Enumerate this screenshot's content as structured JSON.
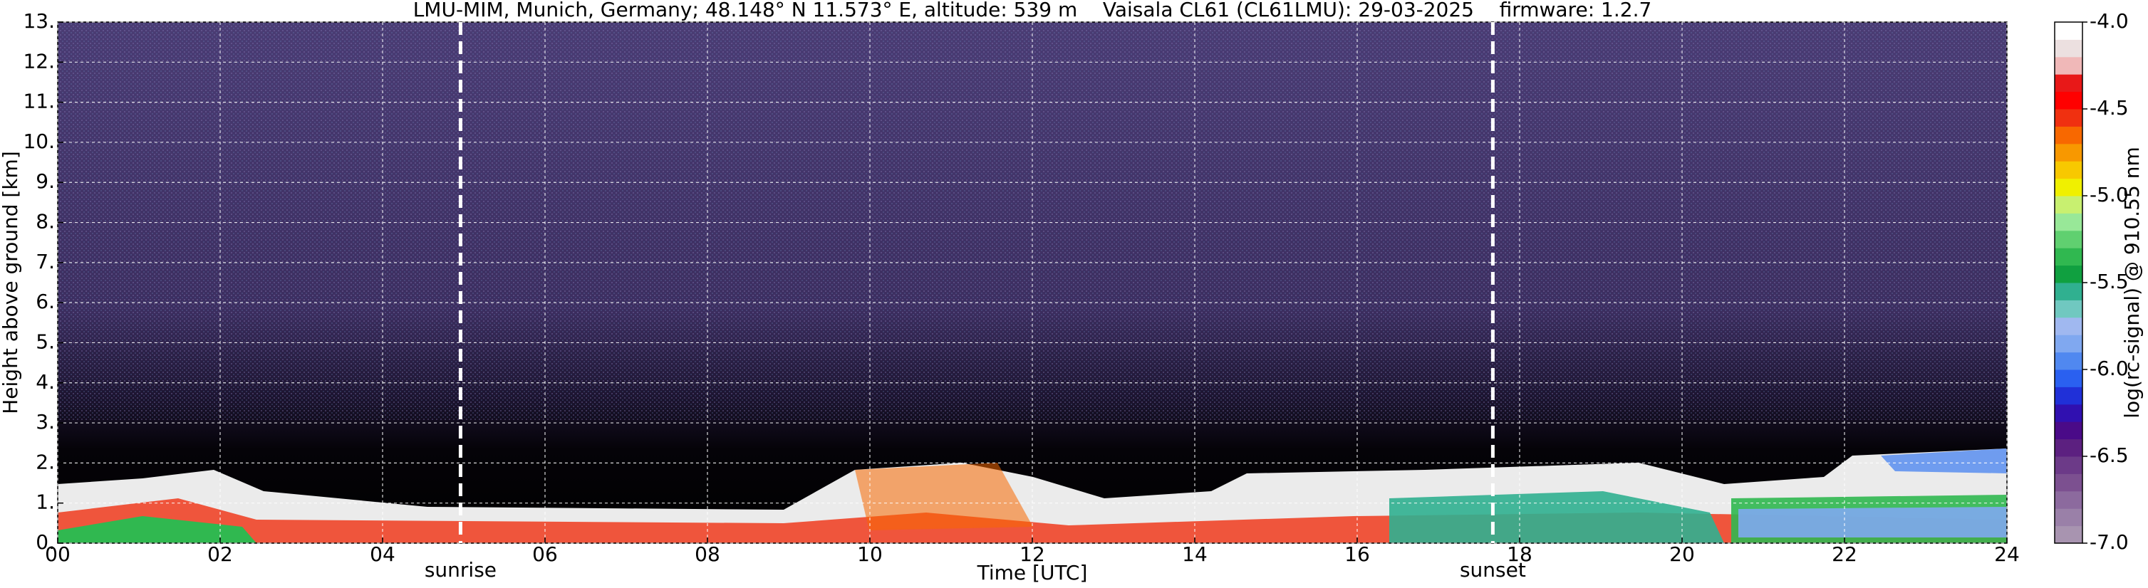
{
  "chart_data": {
    "type": "heatmap",
    "title": "LMU-MIM, Munich, Germany; 48.148° N 11.573° E, altitude: 539 m    Vaisala CL61 (CL61LMU): 29-03-2025    firmware: 1.2.7",
    "x_label": "Time [UTC]",
    "y_label": "Height above ground [km]",
    "xlim": [
      0,
      24
    ],
    "xticks": [
      {
        "value": 0,
        "label": "00"
      },
      {
        "value": 2,
        "label": "02"
      },
      {
        "value": 4,
        "label": "04"
      },
      {
        "value": 6,
        "label": "06"
      },
      {
        "value": 8,
        "label": "08"
      },
      {
        "value": 10,
        "label": "10"
      },
      {
        "value": 12,
        "label": "12"
      },
      {
        "value": 14,
        "label": "14"
      },
      {
        "value": 16,
        "label": "16"
      },
      {
        "value": 18,
        "label": "18"
      },
      {
        "value": 20,
        "label": "20"
      },
      {
        "value": 22,
        "label": "22"
      },
      {
        "value": 24,
        "label": "24"
      }
    ],
    "ylim": [
      0,
      13
    ],
    "yticks": [
      {
        "value": 0,
        "label": "0."
      },
      {
        "value": 1,
        "label": "1."
      },
      {
        "value": 2,
        "label": "2."
      },
      {
        "value": 3,
        "label": "3."
      },
      {
        "value": 4,
        "label": "4."
      },
      {
        "value": 5,
        "label": "5."
      },
      {
        "value": 6,
        "label": "6."
      },
      {
        "value": 7,
        "label": "7."
      },
      {
        "value": 8,
        "label": "8."
      },
      {
        "value": 9,
        "label": "9."
      },
      {
        "value": 10,
        "label": "10."
      },
      {
        "value": 11,
        "label": "11."
      },
      {
        "value": 12,
        "label": "12."
      },
      {
        "value": 13,
        "label": "13."
      }
    ],
    "grid": true,
    "annotations": [
      {
        "text": "sunrise",
        "x": 4.96
      },
      {
        "text": "sunset",
        "x": 17.67
      }
    ],
    "colorbar": {
      "label": "log(rc-signal) @ 910.55 nm",
      "lim": [
        -7.0,
        -4.0
      ],
      "ticks": [
        {
          "value": -4,
          "label": "-4.0"
        },
        -4.5,
        {
          "value": -5,
          "label": "-5.0"
        },
        -5.5,
        {
          "value": -6,
          "label": "-6.0"
        },
        -6.5,
        {
          "value": -7,
          "label": "-7.0"
        }
      ],
      "colors": [
        "#a894b0",
        "#9a80a8",
        "#8c6a9e",
        "#7c5090",
        "#6c3a88",
        "#5c2080",
        "#4a0a88",
        "#3010b0",
        "#2030d8",
        "#2a60f0",
        "#5088f0",
        "#80a8f0",
        "#a0b8f0",
        "#70c8c0",
        "#30b090",
        "#10a040",
        "#30b850",
        "#60d070",
        "#98e898",
        "#c8f070",
        "#f0f000",
        "#f8c800",
        "#f89800",
        "#f86800",
        "#f03010",
        "#ff0000",
        "#e81818",
        "#f0b8b8",
        "#ece0e0",
        "#ffffff"
      ]
    }
  }
}
